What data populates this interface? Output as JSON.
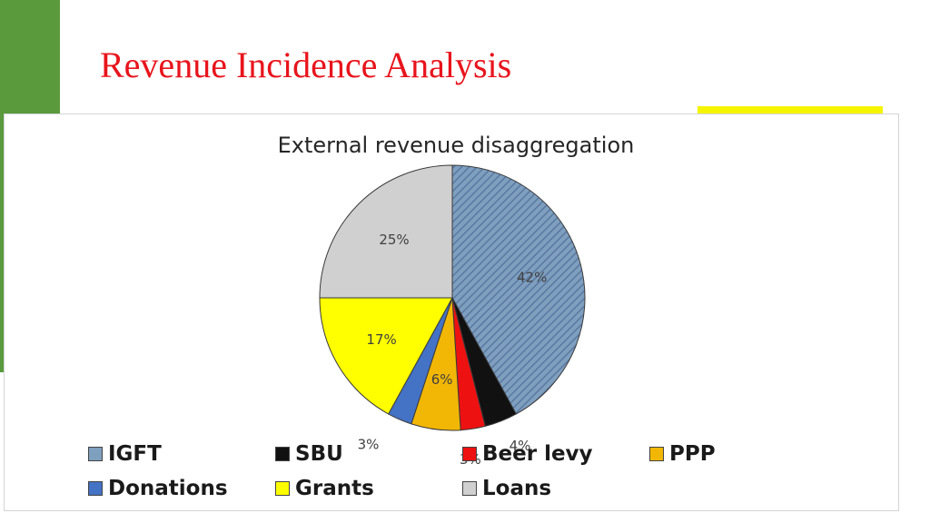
{
  "slide": {
    "title": "Revenue Incidence Analysis",
    "accent_green": "#5a9a3c",
    "accent_yellow": "#f5f500",
    "title_color": "#e8141c"
  },
  "chart_data": {
    "type": "pie",
    "title": "External revenue disaggregation",
    "legend_position": "bottom",
    "slices": [
      {
        "name": "IGFT",
        "value": 42,
        "label": "42%",
        "color": "#6f8faf",
        "pattern": "hatched"
      },
      {
        "name": "SBU",
        "value": 4,
        "label": "4%",
        "color": "#111111"
      },
      {
        "name": "Beer levy",
        "value": 3,
        "label": "3%",
        "color": "#ee1111"
      },
      {
        "name": "PPP",
        "value": 6,
        "label": "6%",
        "color": "#f2b705"
      },
      {
        "name": "Donations",
        "value": 3,
        "label": "3%",
        "color": "#4472c4"
      },
      {
        "name": "Grants",
        "value": 17,
        "label": "17%",
        "color": "#ffff00"
      },
      {
        "name": "Loans",
        "value": 25,
        "label": "25%",
        "color": "#d0d0d0"
      }
    ]
  }
}
